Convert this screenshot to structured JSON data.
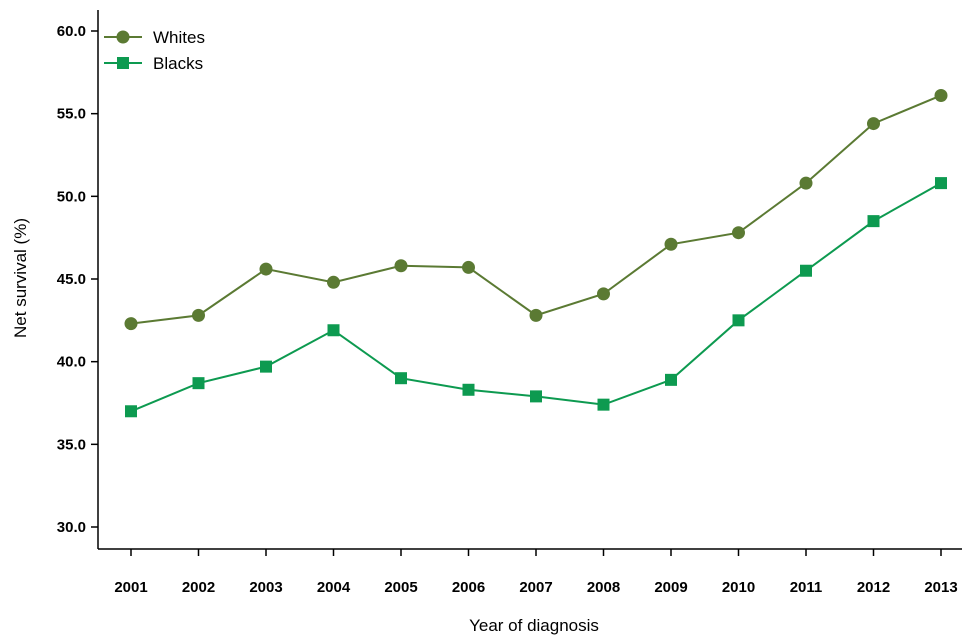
{
  "chart_data": {
    "type": "line",
    "title": "",
    "xlabel": "Year of diagnosis",
    "ylabel": "Net survival (%)",
    "x": [
      "2001",
      "2002",
      "2003",
      "2004",
      "2005",
      "2006",
      "2007",
      "2008",
      "2009",
      "2010",
      "2011",
      "2012",
      "2013"
    ],
    "ylim": [
      30.0,
      60.0
    ],
    "yticks": [
      "30.0",
      "35.0",
      "40.0",
      "45.0",
      "50.0",
      "55.0",
      "60.0"
    ],
    "grid": false,
    "legend_position": "top-left",
    "series": [
      {
        "name": "Whites",
        "marker": "circle",
        "color": "#5b7a33",
        "values": [
          42.3,
          42.8,
          45.6,
          44.8,
          45.8,
          45.7,
          42.8,
          44.1,
          47.1,
          47.8,
          50.8,
          54.4,
          56.1
        ]
      },
      {
        "name": "Blacks",
        "marker": "square",
        "color": "#0d9a50",
        "values": [
          37.0,
          38.7,
          39.7,
          41.9,
          39.0,
          38.3,
          37.9,
          37.4,
          38.9,
          42.5,
          45.5,
          48.5,
          50.8
        ]
      }
    ]
  }
}
